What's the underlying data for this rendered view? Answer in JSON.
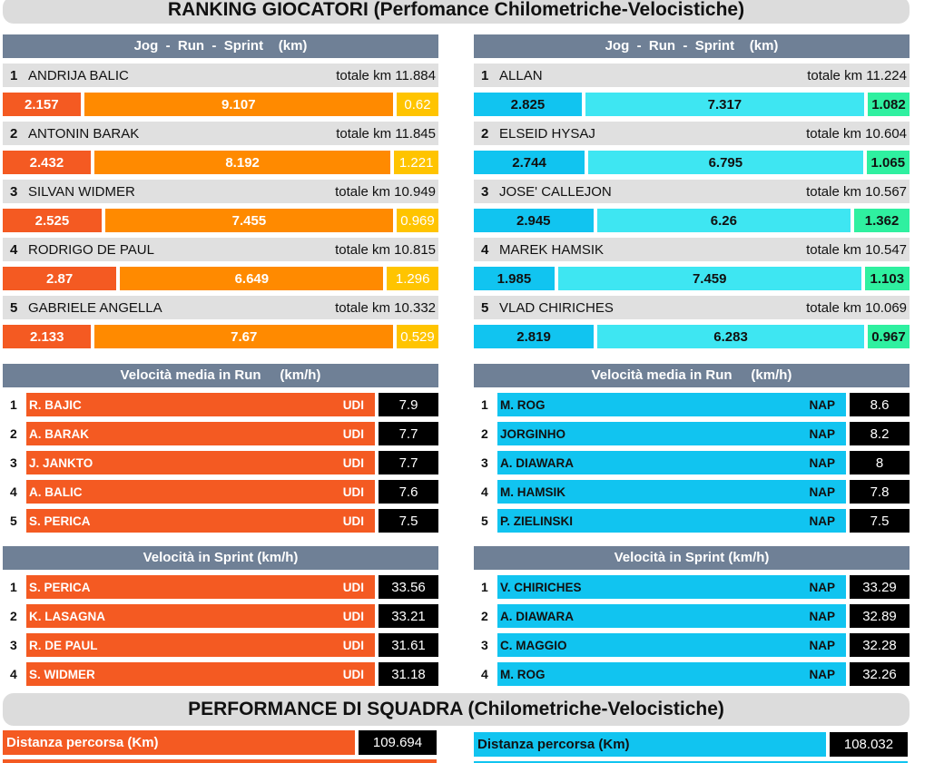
{
  "title": "RANKING GIOCATORI (Perfomance Chilometriche-Velocistiche)",
  "km_header": "Jog  -  Run  -  Sprint    (km)",
  "total_label": "totale km",
  "km_left": [
    {
      "rank": "1",
      "name": "ANDRIJA BALIC",
      "total": "11.884",
      "jog": "2.157",
      "run": "9.107",
      "sprint": "0.62"
    },
    {
      "rank": "2",
      "name": "ANTONIN BARAK",
      "total": "11.845",
      "jog": "2.432",
      "run": "8.192",
      "sprint": "1.221"
    },
    {
      "rank": "3",
      "name": "SILVAN WIDMER",
      "total": "10.949",
      "jog": "2.525",
      "run": "7.455",
      "sprint": "0.969"
    },
    {
      "rank": "4",
      "name": "RODRIGO DE PAUL",
      "total": "10.815",
      "jog": "2.87",
      "run": "6.649",
      "sprint": "1.296"
    },
    {
      "rank": "5",
      "name": "GABRIELE ANGELLA",
      "total": "10.332",
      "jog": "2.133",
      "run": "7.67",
      "sprint": "0.529"
    }
  ],
  "km_right": [
    {
      "rank": "1",
      "name": "ALLAN",
      "total": "11.224",
      "jog": "2.825",
      "run": "7.317",
      "sprint": "1.082"
    },
    {
      "rank": "2",
      "name": "ELSEID HYSAJ",
      "total": "10.604",
      "jog": "2.744",
      "run": "6.795",
      "sprint": "1.065"
    },
    {
      "rank": "3",
      "name": "JOSE' CALLEJON",
      "total": "10.567",
      "jog": "2.945",
      "run": "6.26",
      "sprint": "1.362"
    },
    {
      "rank": "4",
      "name": "MAREK HAMSIK",
      "total": "10.547",
      "jog": "1.985",
      "run": "7.459",
      "sprint": "1.103"
    },
    {
      "rank": "5",
      "name": "VLAD CHIRICHES",
      "total": "10.069",
      "jog": "2.819",
      "run": "6.283",
      "sprint": "0.967"
    }
  ],
  "run_header": "Velocità media in Run     (km/h)",
  "run_left": [
    {
      "rank": "1",
      "name": "R. BAJIC",
      "team": "UDI",
      "value": "7.9"
    },
    {
      "rank": "2",
      "name": "A. BARAK",
      "team": "UDI",
      "value": "7.7"
    },
    {
      "rank": "3",
      "name": "J. JANKTO",
      "team": "UDI",
      "value": "7.7"
    },
    {
      "rank": "4",
      "name": "A. BALIC",
      "team": "UDI",
      "value": "7.6"
    },
    {
      "rank": "5",
      "name": "S. PERICA",
      "team": "UDI",
      "value": "7.5"
    }
  ],
  "run_right": [
    {
      "rank": "1",
      "name": "M. ROG",
      "team": "NAP",
      "value": "8.6"
    },
    {
      "rank": "2",
      "name": "JORGINHO",
      "team": "NAP",
      "value": "8.2"
    },
    {
      "rank": "3",
      "name": "A. DIAWARA",
      "team": "NAP",
      "value": "8"
    },
    {
      "rank": "4",
      "name": "M. HAMSIK",
      "team": "NAP",
      "value": "7.8"
    },
    {
      "rank": "5",
      "name": "P. ZIELINSKI",
      "team": "NAP",
      "value": "7.5"
    }
  ],
  "sprint_header": "Velocità in Sprint (km/h)",
  "sprint_left": [
    {
      "rank": "1",
      "name": "S. PERICA",
      "team": "UDI",
      "value": "33.56"
    },
    {
      "rank": "2",
      "name": "K. LASAGNA",
      "team": "UDI",
      "value": "33.21"
    },
    {
      "rank": "3",
      "name": "R. DE PAUL",
      "team": "UDI",
      "value": "31.61"
    },
    {
      "rank": "4",
      "name": "S. WIDMER",
      "team": "UDI",
      "value": "31.18"
    }
  ],
  "sprint_right": [
    {
      "rank": "1",
      "name": "V. CHIRICHES",
      "team": "NAP",
      "value": "33.29"
    },
    {
      "rank": "2",
      "name": "A. DIAWARA",
      "team": "NAP",
      "value": "32.89"
    },
    {
      "rank": "3",
      "name": "C. MAGGIO",
      "team": "NAP",
      "value": "32.28"
    },
    {
      "rank": "4",
      "name": "M. ROG",
      "team": "NAP",
      "value": "32.26"
    }
  ],
  "team_title": "PERFORMANCE DI SQUADRA (Chilometriche-Velocistiche)",
  "team_left": {
    "label": "Distanza percorsa (Km)",
    "value": "109.694"
  },
  "team_right": {
    "label": "Distanza percorsa (Km)",
    "value": "108.032"
  },
  "colors": {
    "header": "#6f8096",
    "udi_jog": "#f45a22",
    "udi_run": "#ff8a00",
    "udi_sprint": "#ffc400",
    "nap_jog": "#11c4f0",
    "nap_run": "#3ee6f2",
    "nap_sprint": "#2ff0a0"
  }
}
